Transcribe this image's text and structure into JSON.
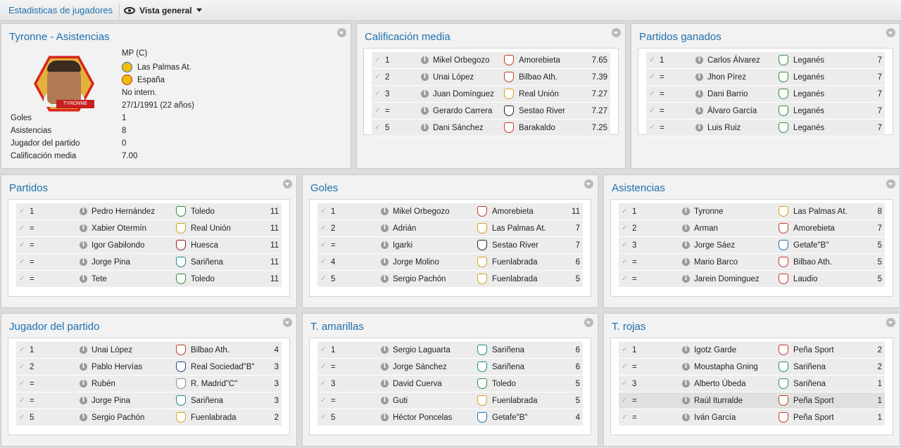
{
  "topbar": {
    "breadcrumb": "Estadisticas de jugadores",
    "view_label": "Vista general"
  },
  "profile": {
    "title": "Tyronne - Asistencias",
    "portrait_caption": "TYRONNE",
    "position": "MP (C)",
    "club": "Las Palmas At.",
    "country": "España",
    "intern": "No intern.",
    "birth": "27/1/1991 (22 años)",
    "stats": [
      {
        "label": "Goles",
        "value": "1"
      },
      {
        "label": "Asistencias",
        "value": "8"
      },
      {
        "label": "Jugador del partido",
        "value": "0"
      },
      {
        "label": "Calificación media",
        "value": "7.00"
      }
    ]
  },
  "panels": [
    {
      "title": "Calificación media",
      "rows": [
        {
          "rank": "1",
          "name": "Mikel Orbegozo",
          "team": "Amorebieta",
          "value": "7.65",
          "color": "#c0392b"
        },
        {
          "rank": "2",
          "name": "Unai López",
          "team": "Bilbao Ath.",
          "value": "7.39",
          "color": "#c0392b"
        },
        {
          "rank": "3",
          "name": "Juan Domínguez",
          "team": "Real Unión",
          "value": "7.27",
          "color": "#d4a017"
        },
        {
          "rank": "=",
          "name": "Gerardo Carrera",
          "team": "Sestao River",
          "value": "7.27",
          "color": "#222222"
        },
        {
          "rank": "5",
          "name": "Dani Sánchez",
          "team": "Barakaldo",
          "value": "7.25",
          "color": "#c0392b"
        }
      ]
    },
    {
      "title": "Partidos ganados",
      "rows": [
        {
          "rank": "1",
          "name": "Carlos Álvarez",
          "team": "Leganés",
          "value": "7",
          "color": "#2e8b3a"
        },
        {
          "rank": "=",
          "name": "Jhon Pírez",
          "team": "Leganés",
          "value": "7",
          "color": "#2e8b3a"
        },
        {
          "rank": "=",
          "name": "Dani Barrio",
          "team": "Leganés",
          "value": "7",
          "color": "#2e8b3a"
        },
        {
          "rank": "=",
          "name": "Álvaro García",
          "team": "Leganés",
          "value": "7",
          "color": "#2e8b3a"
        },
        {
          "rank": "=",
          "name": "Luis Ruiz",
          "team": "Leganés",
          "value": "7",
          "color": "#2e8b3a"
        }
      ]
    },
    {
      "title": "Partidos",
      "rows": [
        {
          "rank": "1",
          "name": "Pedro Hernández",
          "team": "Toledo",
          "value": "11",
          "color": "#2e8b3a"
        },
        {
          "rank": "=",
          "name": "Xabier Otermín",
          "team": "Real Unión",
          "value": "11",
          "color": "#d4a017"
        },
        {
          "rank": "=",
          "name": "Igor Gabilondo",
          "team": "Huesca",
          "value": "11",
          "color": "#8b1a1a"
        },
        {
          "rank": "=",
          "name": "Jorge Pina",
          "team": "Sariñena",
          "value": "11",
          "color": "#1a8b8b"
        },
        {
          "rank": "=",
          "name": "Tete",
          "team": "Toledo",
          "value": "11",
          "color": "#2e8b3a"
        }
      ]
    },
    {
      "title": "Goles",
      "rows": [
        {
          "rank": "1",
          "name": "Mikel Orbegozo",
          "team": "Amorebieta",
          "value": "11",
          "color": "#c0392b"
        },
        {
          "rank": "2",
          "name": "Adrián",
          "team": "Las Palmas At.",
          "value": "7",
          "color": "#d4a017"
        },
        {
          "rank": "=",
          "name": "Igarki",
          "team": "Sestao River",
          "value": "7",
          "color": "#222222"
        },
        {
          "rank": "4",
          "name": "Jorge Molino",
          "team": "Fuenlabrada",
          "value": "6",
          "color": "#d4a017"
        },
        {
          "rank": "5",
          "name": "Sergio Pachón",
          "team": "Fuenlabrada",
          "value": "5",
          "color": "#d4a017"
        }
      ]
    },
    {
      "title": "Asistencias",
      "rows": [
        {
          "rank": "1",
          "name": "Tyronne",
          "team": "Las Palmas At.",
          "value": "8",
          "color": "#d4a017"
        },
        {
          "rank": "2",
          "name": "Arman",
          "team": "Amorebieta",
          "value": "7",
          "color": "#c0392b"
        },
        {
          "rank": "3",
          "name": "Jorge Sáez",
          "team": "Getafe\"B\"",
          "value": "5",
          "color": "#1e6fae"
        },
        {
          "rank": "=",
          "name": "Mario Barco",
          "team": "Bilbao Ath.",
          "value": "5",
          "color": "#c0392b"
        },
        {
          "rank": "=",
          "name": "Jarein Dominguez",
          "team": "Laudio",
          "value": "5",
          "color": "#c0392b"
        }
      ]
    },
    {
      "title": "Jugador del partido",
      "rows": [
        {
          "rank": "1",
          "name": "Unai López",
          "team": "Bilbao Ath.",
          "value": "4",
          "color": "#c0392b"
        },
        {
          "rank": "2",
          "name": "Pablo Hervías",
          "team": "Real Sociedad\"B\"",
          "value": "3",
          "color": "#1e3f8f"
        },
        {
          "rank": "=",
          "name": "Rubén",
          "team": "R. Madrid\"C\"",
          "value": "3",
          "color": "#888888"
        },
        {
          "rank": "=",
          "name": "Jorge Pina",
          "team": "Sariñena",
          "value": "3",
          "color": "#1a8b8b"
        },
        {
          "rank": "5",
          "name": "Sergio Pachón",
          "team": "Fuenlabrada",
          "value": "2",
          "color": "#d4a017"
        }
      ]
    },
    {
      "title": "T. amarillas",
      "rows": [
        {
          "rank": "1",
          "name": "Sergio Laguarta",
          "team": "Sariñena",
          "value": "6",
          "color": "#1a8b8b"
        },
        {
          "rank": "=",
          "name": "Jorge Sánchez",
          "team": "Sariñena",
          "value": "6",
          "color": "#1a8b8b"
        },
        {
          "rank": "3",
          "name": "David Cuerva",
          "team": "Toledo",
          "value": "5",
          "color": "#2e8b3a"
        },
        {
          "rank": "=",
          "name": "Guti",
          "team": "Fuenlabrada",
          "value": "5",
          "color": "#d4a017"
        },
        {
          "rank": "5",
          "name": "Héctor Poncelas",
          "team": "Getafe\"B\"",
          "value": "4",
          "color": "#1e6fae"
        }
      ]
    },
    {
      "title": "T. rojas",
      "rows": [
        {
          "rank": "1",
          "name": "Igotz Garde",
          "team": "Peña Sport",
          "value": "2",
          "color": "#c0392b"
        },
        {
          "rank": "=",
          "name": "Moustapha Gning",
          "team": "Sariñena",
          "value": "2",
          "color": "#1a8b8b"
        },
        {
          "rank": "3",
          "name": "Alberto Úbeda",
          "team": "Sariñena",
          "value": "1",
          "color": "#1a8b8b"
        },
        {
          "rank": "=",
          "name": "Raúl Iturralde",
          "team": "Peña Sport",
          "value": "1",
          "color": "#c0392b"
        },
        {
          "rank": "=",
          "name": "Iván García",
          "team": "Peña Sport",
          "value": "1",
          "color": "#c0392b"
        }
      ]
    }
  ]
}
